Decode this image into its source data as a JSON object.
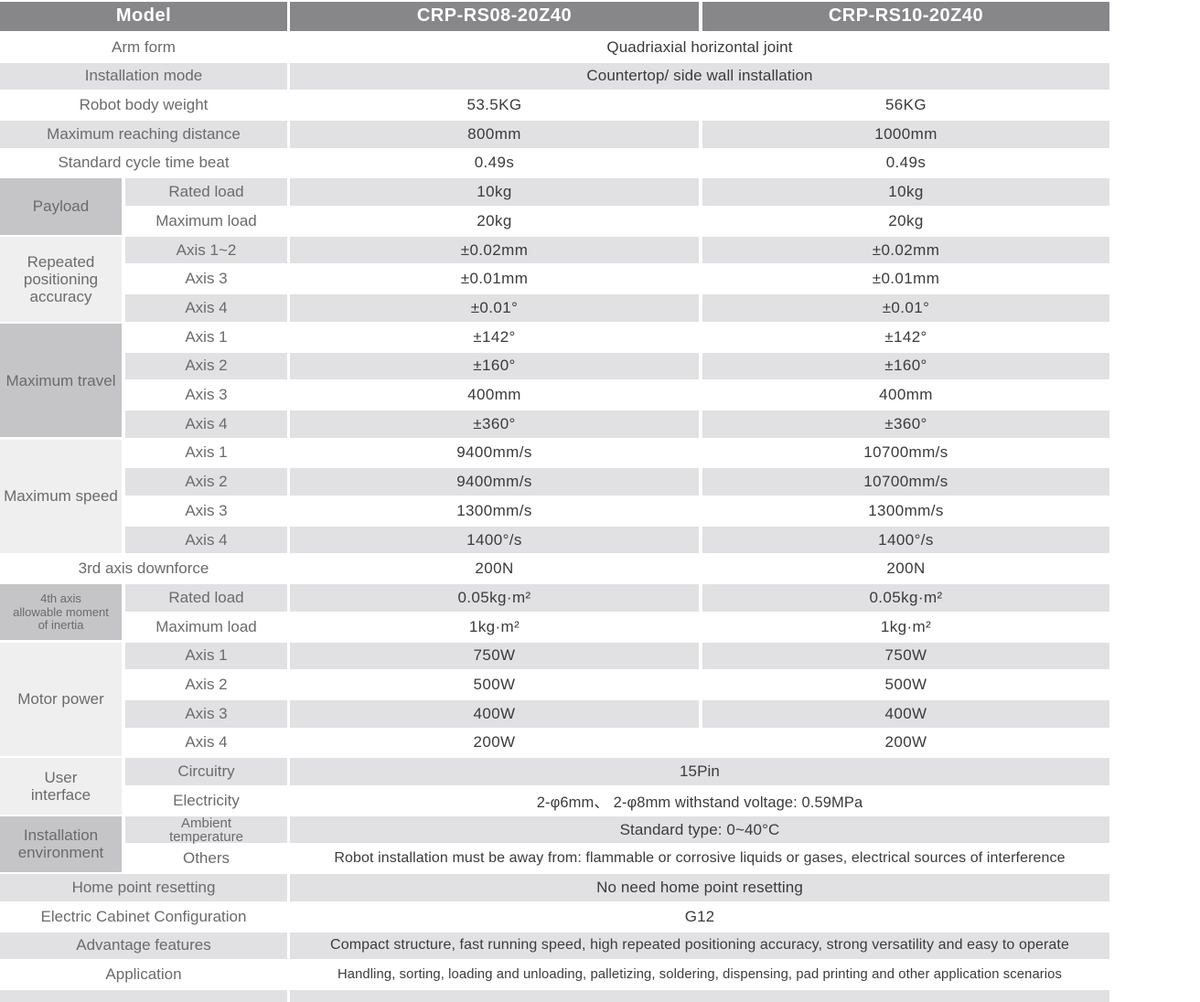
{
  "header": {
    "model_label": "Model",
    "columns": [
      "CRP-RS08-20Z40",
      "CRP-RS10-20Z40"
    ]
  },
  "colors": {
    "header_bg": "#87878a",
    "header_text": "#ffffff",
    "stripe": "#e1e1e3",
    "category_dark": "#c5c5c7",
    "category_light": "#efeff0",
    "label_text": "#6b6b6e",
    "value_text": "#3b3b3d"
  },
  "categories": [
    {
      "label": "Payload",
      "start": 6,
      "span": 2,
      "shade": "dark",
      "small": false
    },
    {
      "label": "Repeated\npositioning\naccuracy",
      "start": 8,
      "span": 3,
      "shade": "light",
      "small": false
    },
    {
      "label": "Maximum travel",
      "start": 11,
      "span": 4,
      "shade": "dark",
      "small": false
    },
    {
      "label": "Maximum speed",
      "start": 15,
      "span": 4,
      "shade": "light",
      "small": false
    },
    {
      "label": "4th axis\nallowable moment\nof inertia",
      "start": 20,
      "span": 2,
      "shade": "dark",
      "small": true
    },
    {
      "label": "Motor power",
      "start": 22,
      "span": 4,
      "shade": "light",
      "small": false
    },
    {
      "label": "User\ninterface",
      "start": 26,
      "span": 2,
      "shade": "light",
      "small": false
    },
    {
      "label": "Installation\nenvironment",
      "start": 28,
      "span": 2,
      "shade": "dark",
      "small": false
    }
  ],
  "rows": [
    {
      "label": "Arm form",
      "merged": "Quadriaxial horizontal joint",
      "shade": "white"
    },
    {
      "label": "Installation mode",
      "merged": "Countertop/ side wall installation",
      "shade": "gray"
    },
    {
      "label": "Robot body weight",
      "values": [
        "53.5KG",
        "56KG"
      ],
      "shade": "white"
    },
    {
      "label": "Maximum reaching distance",
      "values": [
        "800mm",
        "1000mm"
      ],
      "shade": "gray"
    },
    {
      "label": "Standard cycle time beat",
      "values": [
        "0.49s",
        "0.49s"
      ],
      "shade": "white"
    },
    {
      "sub": "Rated load",
      "values": [
        "10kg",
        "10kg"
      ],
      "shade": "gray"
    },
    {
      "sub": "Maximum load",
      "values": [
        "20kg",
        "20kg"
      ],
      "shade": "white"
    },
    {
      "sub": "Axis 1~2",
      "values": [
        "±0.02mm",
        "±0.02mm"
      ],
      "shade": "gray"
    },
    {
      "sub": "Axis 3",
      "values": [
        "±0.01mm",
        "±0.01mm"
      ],
      "shade": "white"
    },
    {
      "sub": "Axis 4",
      "values": [
        "±0.01°",
        "±0.01°"
      ],
      "shade": "gray"
    },
    {
      "sub": "Axis 1",
      "values": [
        "±142°",
        "±142°"
      ],
      "shade": "white"
    },
    {
      "sub": "Axis 2",
      "values": [
        "±160°",
        "±160°"
      ],
      "shade": "gray"
    },
    {
      "sub": "Axis 3",
      "values": [
        "400mm",
        "400mm"
      ],
      "shade": "white"
    },
    {
      "sub": "Axis 4",
      "values": [
        "±360°",
        "±360°"
      ],
      "shade": "gray"
    },
    {
      "sub": "Axis 1",
      "values": [
        "9400mm/s",
        "10700mm/s"
      ],
      "shade": "white"
    },
    {
      "sub": "Axis 2",
      "values": [
        "9400mm/s",
        "10700mm/s"
      ],
      "shade": "gray"
    },
    {
      "sub": "Axis 3",
      "values": [
        "1300mm/s",
        "1300mm/s"
      ],
      "shade": "white"
    },
    {
      "sub": "Axis 4",
      "values": [
        "1400°/s",
        "1400°/s"
      ],
      "shade": "gray"
    },
    {
      "label": "3rd axis downforce",
      "values": [
        "200N",
        "200N"
      ],
      "shade": "white"
    },
    {
      "sub": "Rated load",
      "values": [
        "0.05kg·m²",
        "0.05kg·m²"
      ],
      "shade": "gray"
    },
    {
      "sub": "Maximum load",
      "values": [
        "1kg·m²",
        "1kg·m²"
      ],
      "shade": "white"
    },
    {
      "sub": "Axis 1",
      "values": [
        "750W",
        "750W"
      ],
      "shade": "gray"
    },
    {
      "sub": "Axis 2",
      "values": [
        "500W",
        "500W"
      ],
      "shade": "white"
    },
    {
      "sub": "Axis 3",
      "values": [
        "400W",
        "400W"
      ],
      "shade": "gray"
    },
    {
      "sub": "Axis 4",
      "values": [
        "200W",
        "200W"
      ],
      "shade": "white"
    },
    {
      "sub": "Circuitry",
      "merged": "15Pin",
      "shade": "gray"
    },
    {
      "sub": "Electricity",
      "merged": "2-φ6mm、 2-φ8mm withstand voltage: 0.59MPa",
      "shade": "white"
    },
    {
      "sub": "Ambient\ntemperature",
      "sub_small": true,
      "merged": "Standard type:  0~40°C",
      "shade": "gray"
    },
    {
      "sub": "Others",
      "merged": "Robot installation must be away from: flammable or corrosive liquids or gases, electrical sources of interference",
      "shade": "white"
    },
    {
      "label": "Home point resetting",
      "merged": "No need home point resetting",
      "shade": "gray"
    },
    {
      "label": "Electric Cabinet Configuration",
      "merged": "G12",
      "shade": "white"
    },
    {
      "label": "Advantage features",
      "merged": "Compact structure, fast running speed, high repeated positioning accuracy, strong versatility and easy to operate",
      "shade": "gray"
    },
    {
      "label": "Application",
      "merged": "Handling, sorting, loading and unloading, palletizing, soldering, dispensing, pad printing and other application scenarios",
      "shade": "white"
    },
    {
      "label": "",
      "merged": "",
      "shade": "gray",
      "partial": true
    }
  ]
}
